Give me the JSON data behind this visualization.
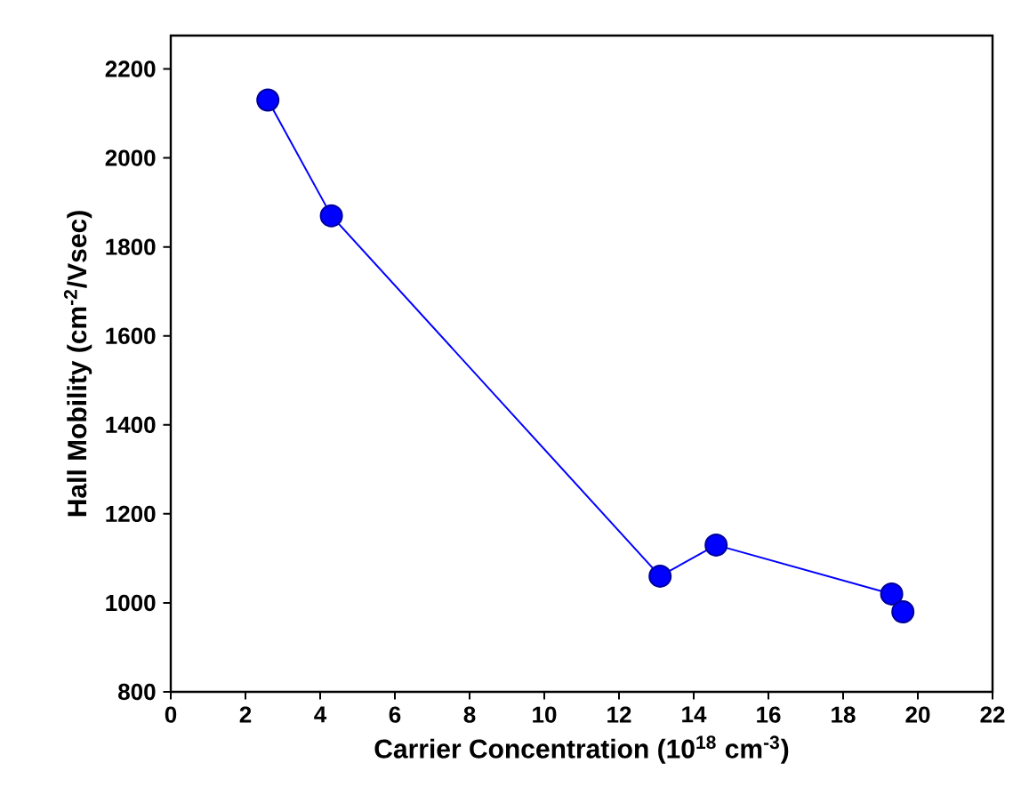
{
  "chart_data": {
    "type": "line",
    "xlabel": "Carrier Concentration (10$^{18}$ cm$^{-3}$)",
    "ylabel": "Hall Mobility (cm$^{-2}$/Vsec)",
    "x": [
      2.6,
      4.3,
      13.1,
      14.6,
      19.3,
      19.6
    ],
    "series": [
      {
        "color": "#0000ff",
        "values": [
          2130,
          1870,
          1060,
          1130,
          1020,
          980
        ]
      }
    ],
    "xlim": [
      0,
      22
    ],
    "ylim": [
      800,
      2275
    ],
    "xticks": [
      0,
      2,
      4,
      6,
      8,
      10,
      12,
      14,
      16,
      18,
      20,
      22
    ],
    "yticks": [
      800,
      1000,
      1200,
      1400,
      1600,
      1800,
      2000,
      2200
    ],
    "marker": "circle",
    "line_style": "solid",
    "grid": false
  }
}
